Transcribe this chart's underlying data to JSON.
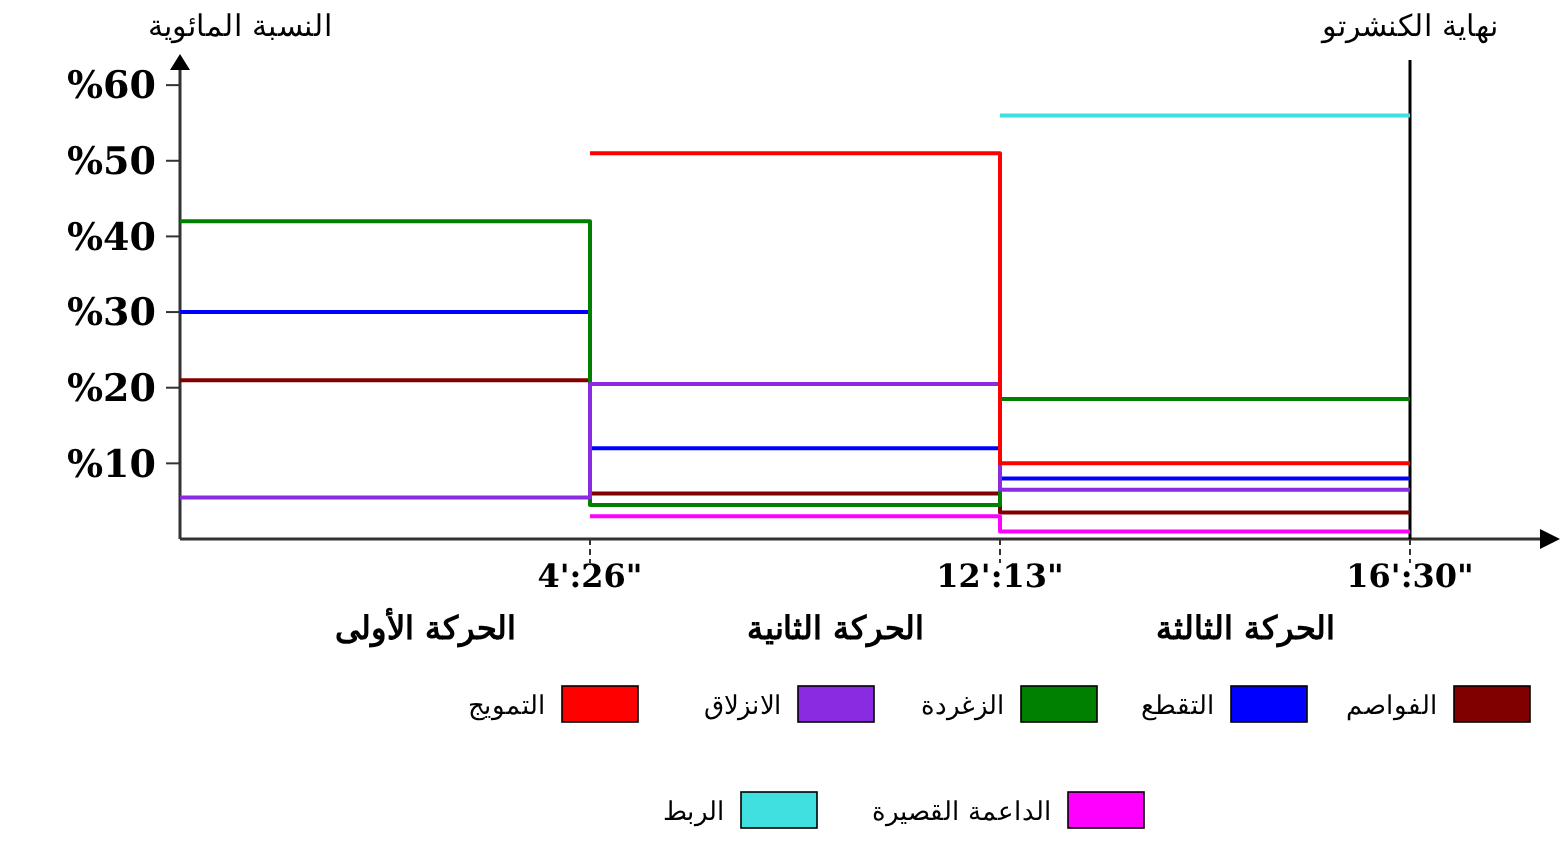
{
  "chart_data": {
    "type": "step",
    "ylabel": "النسبة المائوية",
    "categories": [
      null,
      "4':26\"",
      "12':13\"",
      "16':30\""
    ],
    "ylim": [
      0,
      62
    ],
    "yticks": [
      {
        "value": 10,
        "label": "%10"
      },
      {
        "value": 20,
        "label": "%20"
      },
      {
        "value": 30,
        "label": "%30"
      },
      {
        "value": 40,
        "label": "%40"
      },
      {
        "value": 50,
        "label": "%50"
      },
      {
        "value": 60,
        "label": "%60"
      }
    ],
    "series": [
      {
        "name": "الفواصم",
        "color": "#800000",
        "values": [
          21,
          6,
          3.5,
          3.5
        ]
      },
      {
        "name": "التقطع",
        "color": "#0000ff",
        "values": [
          30,
          12,
          8,
          8
        ]
      },
      {
        "name": "الزغردة",
        "color": "#008000",
        "values": [
          42,
          4.5,
          18.5,
          18.5
        ]
      },
      {
        "name": "الانزلاق",
        "color": "#8a2be2",
        "values": [
          5.5,
          20.5,
          6.5,
          6.5
        ]
      },
      {
        "name": "التمويج",
        "color": "#ff0000",
        "values": [
          null,
          51,
          10,
          10
        ]
      },
      {
        "name": "الداعمة القصيرة",
        "color": "#ff00ff",
        "values": [
          null,
          3,
          1,
          1
        ]
      },
      {
        "name": "الربط",
        "color": "#40e0e0",
        "values": [
          null,
          null,
          56,
          56
        ]
      }
    ],
    "ref_lines": [
      {
        "axis": "x",
        "value": "16':30\"",
        "label": "نهاية الكنشرتو",
        "color": "#000000"
      }
    ],
    "annotations": [
      "الحركة الأولى",
      "الحركة الثانية",
      "الحركة الثالثة"
    ],
    "legend": "bottom",
    "grid": false,
    "marker": "none",
    "line_style": "solid"
  }
}
